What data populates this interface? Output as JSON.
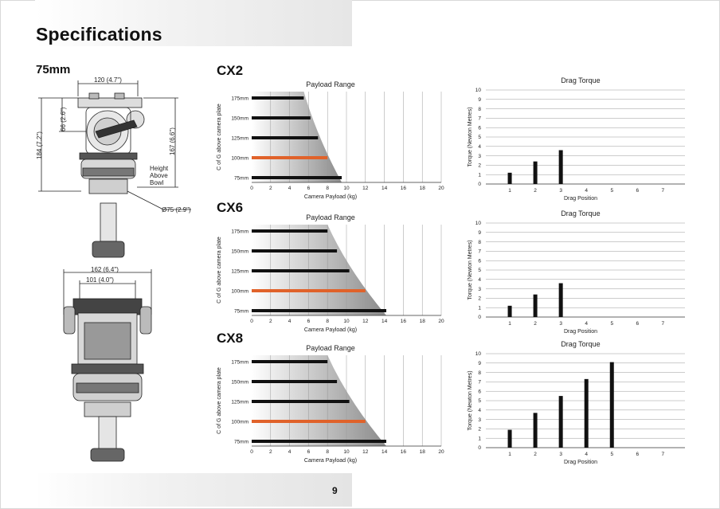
{
  "page": {
    "title": "Specifications",
    "page_number": "9",
    "model_size": "75mm"
  },
  "drawing": {
    "dims": {
      "top_width": "120 (4.7\")",
      "plate_height": "66 (2.6\")",
      "total_height": "184 (7.2\")",
      "bowl_height": "167 (6.6\")",
      "height_above_bowl": "Height\nAbove\nBowl",
      "bowl_diameter": "Ø75 (2.9\")",
      "front_width": "162 (6.4\")",
      "front_inner_width": "101 (4.0\")"
    }
  },
  "models": [
    {
      "name": "CX2"
    },
    {
      "name": "CX6"
    },
    {
      "name": "CX8"
    }
  ],
  "colors": {
    "bar": "#111111",
    "highlight": "#e0622a",
    "grid": "#999999",
    "shade_dark": "#8a8a8a"
  },
  "chart_data": [
    {
      "id": "cx2-payload",
      "type": "bar",
      "orientation": "horizontal",
      "title": "Payload Range",
      "xlabel": "Camera Payload (kg)",
      "ylabel": "C of G above camera plate",
      "categories": [
        "175mm",
        "150mm",
        "125mm",
        "100mm",
        "75mm"
      ],
      "values": [
        5.5,
        6.2,
        7.0,
        8.0,
        9.5
      ],
      "highlight": "100mm",
      "xlim": [
        0,
        20
      ],
      "xticks": [
        0,
        2,
        4,
        6,
        8,
        10,
        12,
        14,
        16,
        18,
        20
      ],
      "shaded_envelope": [
        5.5,
        9.5
      ]
    },
    {
      "id": "cx2-drag",
      "type": "bar",
      "title": "Drag Torque",
      "xlabel": "Drag Position",
      "ylabel": "Torque (Newton Metres)",
      "categories": [
        1,
        2,
        3,
        4,
        5,
        6,
        7
      ],
      "values": [
        1.2,
        2.4,
        3.6,
        null,
        null,
        null,
        null
      ],
      "ylim": [
        0,
        10
      ],
      "yticks": [
        0,
        1,
        2,
        3,
        4,
        5,
        6,
        7,
        8,
        9,
        10
      ]
    },
    {
      "id": "cx6-payload",
      "type": "bar",
      "orientation": "horizontal",
      "title": "Payload Range",
      "xlabel": "Camera Payload (kg)",
      "ylabel": "C of G above camera plate",
      "categories": [
        "175mm",
        "150mm",
        "125mm",
        "100mm",
        "75mm"
      ],
      "values": [
        8.0,
        9.0,
        10.3,
        12.0,
        14.2
      ],
      "highlight": "100mm",
      "xlim": [
        0,
        20
      ],
      "xticks": [
        0,
        2,
        4,
        6,
        8,
        10,
        12,
        14,
        16,
        18,
        20
      ],
      "shaded_envelope": [
        8.0,
        14.2
      ]
    },
    {
      "id": "cx6-drag",
      "type": "bar",
      "title": "Drag Torque",
      "xlabel": "Drag Position",
      "ylabel": "Torque (Newton Metres)",
      "categories": [
        1,
        2,
        3,
        4,
        5,
        6,
        7
      ],
      "values": [
        1.2,
        2.4,
        3.6,
        null,
        null,
        null,
        null
      ],
      "ylim": [
        0,
        10
      ],
      "yticks": [
        0,
        1,
        2,
        3,
        4,
        5,
        6,
        7,
        8,
        9,
        10
      ]
    },
    {
      "id": "cx8-payload",
      "type": "bar",
      "orientation": "horizontal",
      "title": "Payload Range",
      "xlabel": "Camera Payload (kg)",
      "ylabel": "C of G above camera plate",
      "categories": [
        "175mm",
        "150mm",
        "125mm",
        "100mm",
        "75mm"
      ],
      "values": [
        8.0,
        9.0,
        10.3,
        12.0,
        14.2
      ],
      "highlight": "100mm",
      "xlim": [
        0,
        20
      ],
      "xticks": [
        0,
        2,
        4,
        6,
        8,
        10,
        12,
        14,
        16,
        18,
        20
      ],
      "shaded_envelope": [
        8.0,
        14.2
      ]
    },
    {
      "id": "cx8-drag",
      "type": "bar",
      "title": "Drag Torque",
      "xlabel": "Drag Position",
      "ylabel": "Torque (Newton Metres)",
      "categories": [
        1,
        2,
        3,
        4,
        5,
        6,
        7
      ],
      "values": [
        1.9,
        3.7,
        5.5,
        7.3,
        9.1,
        null,
        null
      ],
      "ylim": [
        0,
        10
      ],
      "yticks": [
        0,
        1,
        2,
        3,
        4,
        5,
        6,
        7,
        8,
        9,
        10
      ]
    }
  ]
}
